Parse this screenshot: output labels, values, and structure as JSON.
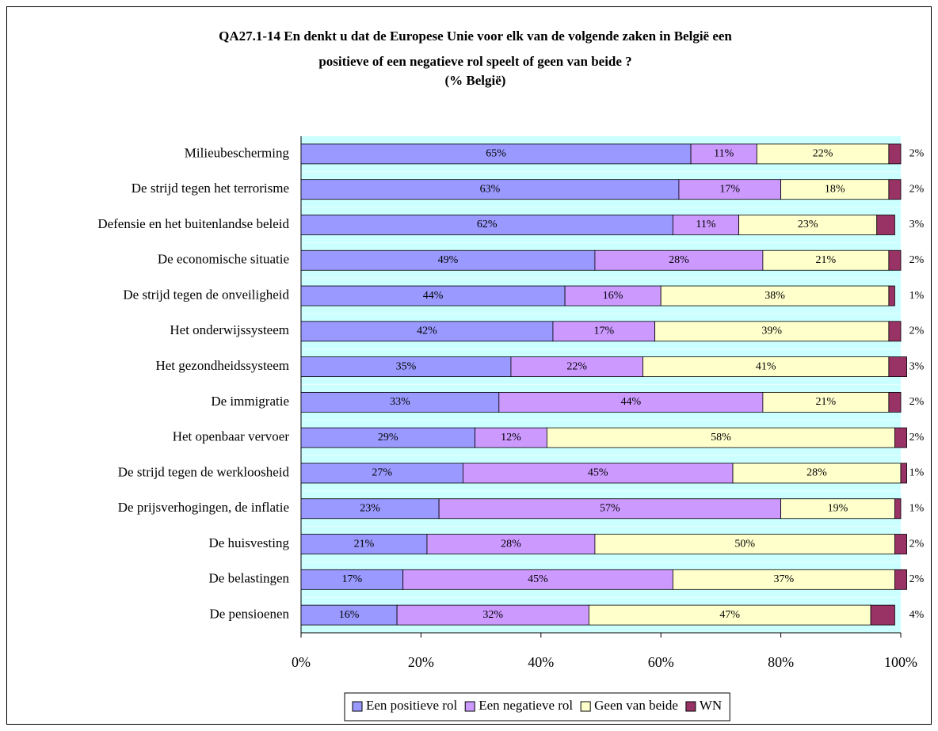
{
  "chart_data": {
    "type": "stacked_barh",
    "title": [
      "QA27.1-14 En denkt u dat de Europese Unie voor elk van de volgende zaken in België een",
      "positieve of een negatieve rol speelt of geen van beide ?",
      "(% België)"
    ],
    "categories": [
      "Milieubescherming",
      "De strijd tegen het terrorisme",
      "Defensie en het buitenlandse beleid",
      "De economische situatie",
      "De strijd tegen de onveiligheid",
      "Het onderwijssysteem",
      "Het gezondheidssysteem",
      "De immigratie",
      "Het openbaar vervoer",
      "De strijd tegen de werkloosheid",
      "De prijsverhogingen, de inflatie",
      "De huisvesting",
      "De belastingen",
      "De pensioenen"
    ],
    "series": [
      {
        "name": "Een positieve rol",
        "color": "#9999ff",
        "values": [
          65,
          63,
          62,
          49,
          44,
          42,
          35,
          33,
          29,
          27,
          23,
          21,
          17,
          16
        ],
        "value_labels": [
          "65%",
          "63%",
          "62%",
          "49%",
          "44%",
          "42%",
          "35%",
          "33%",
          "29%",
          "27%",
          "23%",
          "21%",
          "17%",
          "16%"
        ]
      },
      {
        "name": "Een negatieve rol",
        "color": "#cc99ff",
        "values": [
          11,
          17,
          11,
          28,
          16,
          17,
          22,
          44,
          12,
          45,
          57,
          28,
          45,
          32
        ],
        "value_labels": [
          "11%",
          "17%",
          "11%",
          "28%",
          "16%",
          "17%",
          "22%",
          "44%",
          "12%",
          "45%",
          "57%",
          "28%",
          "45%",
          "32%"
        ]
      },
      {
        "name": "Geen van beide",
        "color": "#ffffcc",
        "values": [
          22,
          18,
          23,
          21,
          38,
          39,
          41,
          21,
          58,
          28,
          19,
          50,
          37,
          47
        ],
        "value_labels": [
          "22%",
          "18%",
          "23%",
          "21%",
          "38%",
          "39%",
          "41%",
          "21%",
          "58%",
          "28%",
          "19%",
          "50%",
          "37%",
          "47%"
        ]
      },
      {
        "name": "WN",
        "color": "#993366",
        "values": [
          2,
          2,
          3,
          2,
          1,
          2,
          3,
          2,
          2,
          1,
          1,
          2,
          2,
          4
        ],
        "value_labels": [
          "2%",
          "2%",
          "3%",
          "2%",
          "1%",
          "2%",
          "3%",
          "2%",
          "2%",
          "1%",
          "1%",
          "2%",
          "2%",
          "4%"
        ]
      }
    ],
    "xlim": [
      0,
      100
    ],
    "xticks": [
      {
        "value": 0,
        "label": "0%"
      },
      {
        "value": 20,
        "label": "20%"
      },
      {
        "value": 40,
        "label": "40%"
      },
      {
        "value": 60,
        "label": "60%"
      },
      {
        "value": 80,
        "label": "80%"
      },
      {
        "value": 100,
        "label": "100%"
      }
    ],
    "plot_background": "#ccffff",
    "legend": "bottom"
  }
}
